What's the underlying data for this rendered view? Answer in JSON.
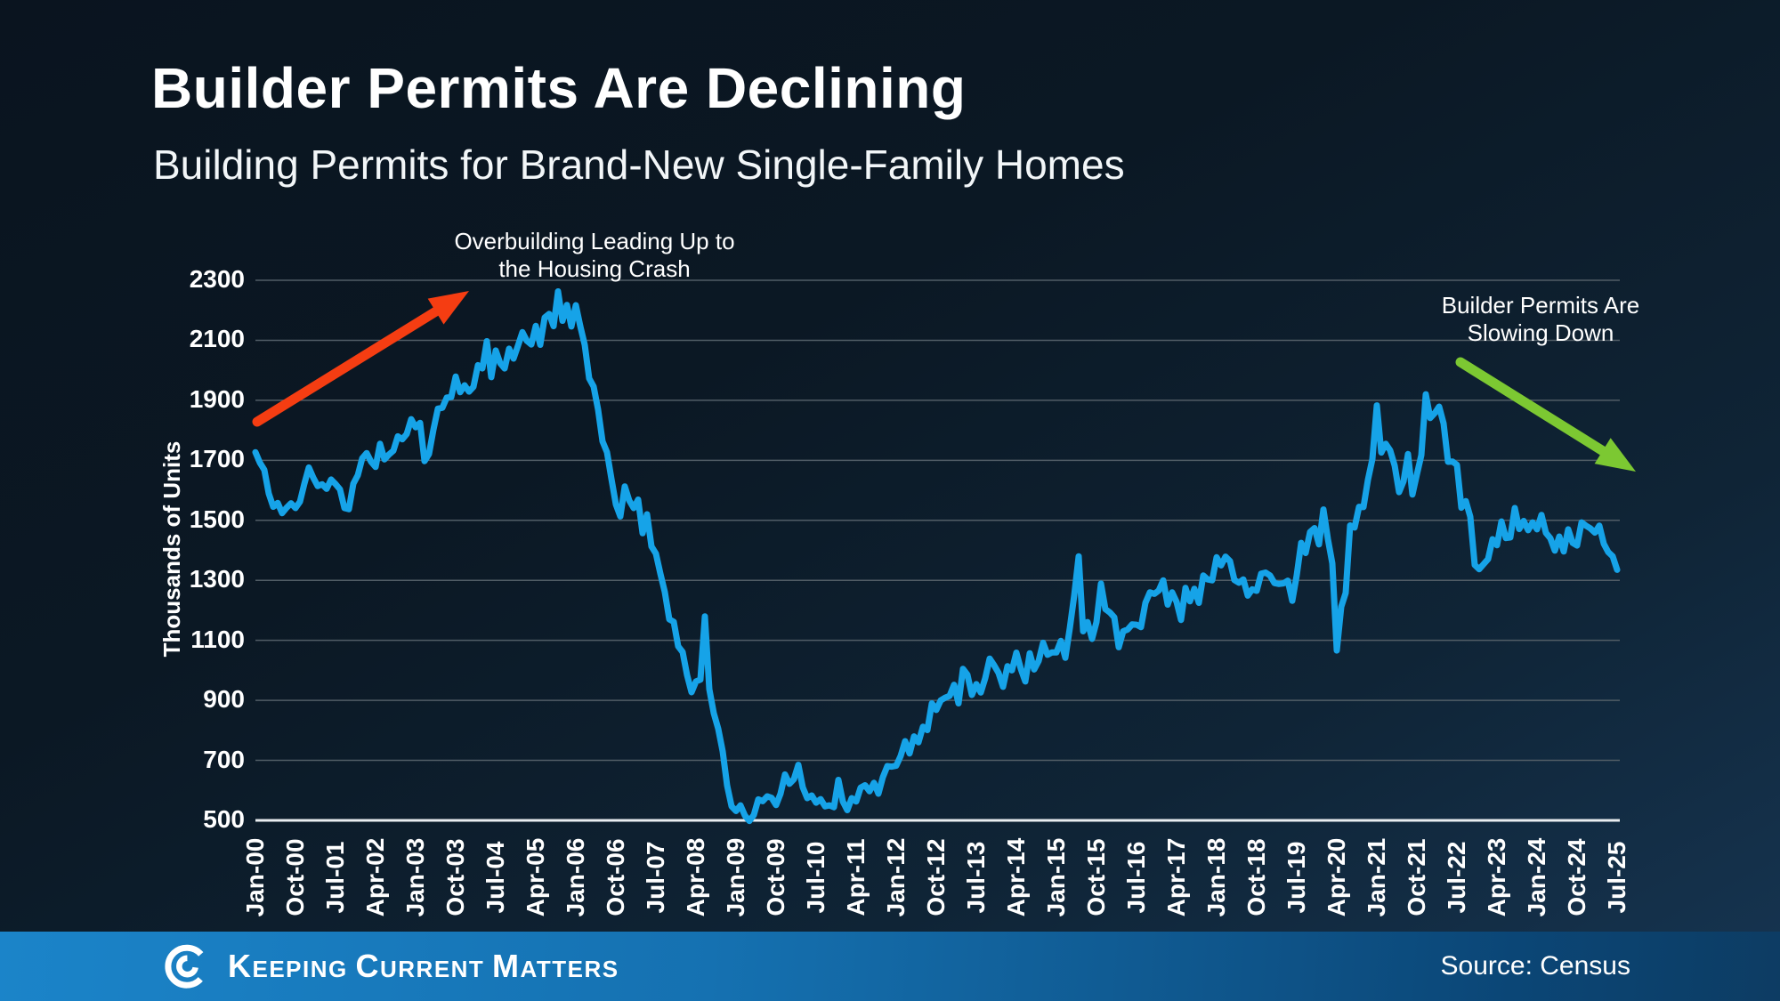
{
  "page": {
    "title": "Builder Permits Are Declining",
    "subtitle": "Building Permits for Brand-New Single-Family Homes"
  },
  "annotations": {
    "overbuilding": {
      "line1": "Overbuilding Leading Up to",
      "line2": "the Housing Crash"
    },
    "slowing": {
      "line1": "Builder Permits Are",
      "line2": "Slowing Down"
    }
  },
  "footer": {
    "brand_words": [
      "Keeping",
      "Current",
      "Matters"
    ],
    "source_label": "Source: Census"
  },
  "colors": {
    "line": "#16a3e8",
    "grid": "#515d66",
    "baseline": "#e9edf0",
    "up_arrow": "#f53d12",
    "down_arrow": "#7cc832",
    "footer_left": "#1b84c9",
    "footer_right": "#0b4676",
    "background_dark": "#0a141f",
    "background_light": "#163552",
    "text": "#ffffff"
  },
  "chart_data": {
    "type": "line",
    "series_name": "Building permits for brand-new single-family homes",
    "ylabel": "Thousands of Units",
    "ylim": [
      500,
      2300
    ],
    "yticks": [
      500,
      700,
      900,
      1100,
      1300,
      1500,
      1700,
      1900,
      2100,
      2300
    ],
    "grid": "horizontal",
    "legend_position": "none",
    "x_start": "Jan-2000",
    "x_end": "Jul-2025",
    "frequency": "monthly",
    "xtick_interval_months": 9,
    "xtick_labels": [
      "Jan-00",
      "Oct-00",
      "Jul-01",
      "Apr-02",
      "Jan-03",
      "Oct-03",
      "Jul-04",
      "Apr-05",
      "Jan-06",
      "Oct-06",
      "Jul-07",
      "Apr-08",
      "Jan-09",
      "Oct-09",
      "Jul-10",
      "Apr-11",
      "Jan-12",
      "Oct-12",
      "Jul-13",
      "Apr-14",
      "Jan-15",
      "Oct-15",
      "Jul-16",
      "Apr-17",
      "Jan-18",
      "Oct-18",
      "Jul-19",
      "Apr-20",
      "Jan-21",
      "Oct-21",
      "Jul-22",
      "Apr-23",
      "Jan-24",
      "Oct-24",
      "Jul-25"
    ],
    "values": [
      1727,
      1692,
      1668,
      1589,
      1545,
      1558,
      1524,
      1542,
      1557,
      1541,
      1562,
      1622,
      1676,
      1642,
      1614,
      1620,
      1605,
      1636,
      1621,
      1603,
      1541,
      1537,
      1622,
      1650,
      1707,
      1724,
      1695,
      1678,
      1755,
      1703,
      1719,
      1732,
      1780,
      1770,
      1788,
      1837,
      1810,
      1825,
      1697,
      1721,
      1802,
      1872,
      1875,
      1909,
      1911,
      1979,
      1927,
      1950,
      1929,
      1945,
      2017,
      2006,
      2097,
      1977,
      2066,
      2024,
      2006,
      2072,
      2039,
      2082,
      2127,
      2098,
      2086,
      2148,
      2085,
      2176,
      2188,
      2147,
      2263,
      2165,
      2218,
      2146,
      2217,
      2147,
      2085,
      1973,
      1946,
      1869,
      1763,
      1727,
      1638,
      1553,
      1513,
      1613,
      1566,
      1541,
      1569,
      1457,
      1520,
      1413,
      1389,
      1322,
      1261,
      1170,
      1162,
      1080,
      1061,
      984,
      927,
      963,
      969,
      1180,
      937,
      857,
      805,
      730,
      616,
      547,
      531,
      550,
      516,
      498,
      518,
      570,
      564,
      580,
      575,
      551,
      589,
      653,
      622,
      637,
      685,
      610,
      574,
      583,
      559,
      571,
      547,
      550,
      544,
      635,
      563,
      534,
      574,
      563,
      609,
      617,
      597,
      625,
      589,
      644,
      681,
      679,
      682,
      715,
      764,
      723,
      780,
      760,
      812,
      801,
      890,
      868,
      900,
      909,
      915,
      952,
      890,
      1005,
      985,
      918,
      954,
      926,
      974,
      1039,
      1017,
      991,
      945,
      1014,
      1000,
      1059,
      1005,
      963,
      1057,
      1003,
      1031,
      1092,
      1052,
      1060,
      1060,
      1098,
      1042,
      1140,
      1250,
      1380,
      1130,
      1161,
      1105,
      1161,
      1289,
      1204,
      1193,
      1177,
      1077,
      1130,
      1136,
      1153,
      1152,
      1144,
      1225,
      1260,
      1255,
      1266,
      1300,
      1219,
      1260,
      1228,
      1168,
      1275,
      1230,
      1272,
      1225,
      1316,
      1303,
      1300,
      1377,
      1350,
      1379,
      1364,
      1301,
      1292,
      1303,
      1249,
      1270,
      1265,
      1322,
      1326,
      1316,
      1291,
      1288,
      1290,
      1299,
      1232,
      1317,
      1425,
      1391,
      1461,
      1474,
      1420,
      1536,
      1438,
      1356,
      1066,
      1212,
      1258,
      1483,
      1476,
      1545,
      1544,
      1635,
      1704,
      1883,
      1726,
      1755,
      1733,
      1683,
      1594,
      1630,
      1721,
      1586,
      1653,
      1717,
      1920,
      1841,
      1857,
      1879,
      1823,
      1695,
      1696,
      1685,
      1542,
      1564,
      1512,
      1351,
      1337,
      1354,
      1371,
      1437,
      1417,
      1496,
      1441,
      1443,
      1541,
      1471,
      1498,
      1467,
      1493,
      1470,
      1518,
      1458,
      1440,
      1399,
      1446,
      1396,
      1470,
      1425,
      1416,
      1493,
      1482,
      1473,
      1459,
      1482,
      1422,
      1394,
      1380,
      1335
    ]
  }
}
